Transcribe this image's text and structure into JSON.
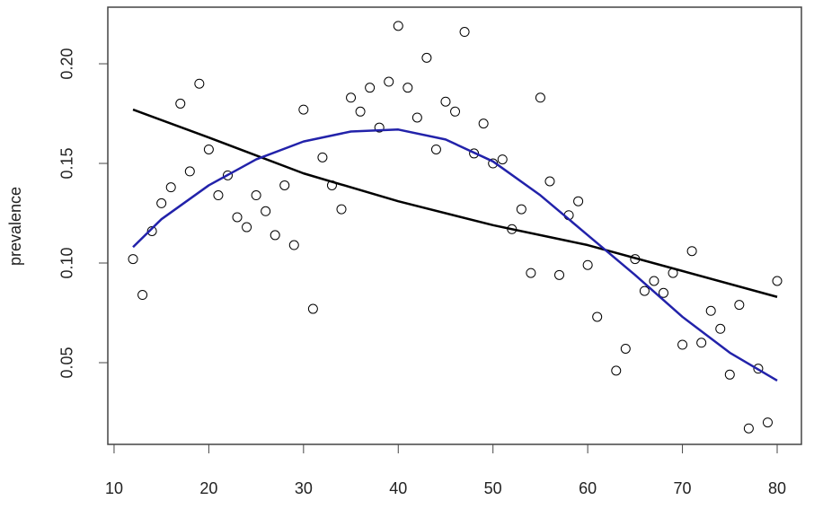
{
  "chart_data": {
    "type": "scatter",
    "y_label": "prevalence",
    "xlim": [
      9.34,
      82.56
    ],
    "ylim": [
      0.009,
      0.2284
    ],
    "xticks": [
      10,
      20,
      30,
      40,
      50,
      60,
      70,
      80
    ],
    "yticks": [
      0.05,
      {
        "value": 0.1,
        "label": "0.10"
      },
      0.15,
      {
        "value": 0.2,
        "label": "0.20"
      }
    ],
    "series": [
      {
        "type": "scatter",
        "color": "#000000",
        "x": [
          12,
          13,
          14,
          15,
          16,
          17,
          18,
          19,
          20,
          21,
          22,
          23,
          24,
          25,
          26,
          27,
          28,
          29,
          30,
          31,
          32,
          33,
          34,
          35,
          36,
          37,
          38,
          39,
          40,
          41,
          42,
          43,
          44,
          45,
          46,
          47,
          48,
          49,
          50,
          51,
          52,
          53,
          54,
          55,
          56,
          57,
          58,
          59,
          60,
          61,
          63,
          64,
          65,
          66,
          67,
          68,
          69,
          70,
          71,
          72,
          73,
          74,
          75,
          76,
          77,
          78,
          79,
          80
        ],
        "values": [
          0.102,
          0.084,
          0.116,
          0.13,
          0.138,
          0.18,
          0.146,
          0.19,
          0.157,
          0.134,
          0.144,
          0.123,
          0.118,
          0.134,
          0.126,
          0.114,
          0.139,
          0.109,
          0.177,
          0.077,
          0.153,
          0.139,
          0.127,
          0.183,
          0.176,
          0.188,
          0.168,
          0.191,
          0.219,
          0.188,
          0.173,
          0.203,
          0.157,
          0.181,
          0.176,
          0.216,
          0.155,
          0.17,
          0.15,
          0.152,
          0.117,
          0.127,
          0.095,
          0.183,
          0.141,
          0.094,
          0.124,
          0.131,
          0.099,
          0.073,
          0.046,
          0.057,
          0.102,
          0.086,
          0.091,
          0.085,
          0.095,
          0.059,
          0.106,
          0.06,
          0.076,
          0.067,
          0.044,
          0.079,
          0.017,
          0.047,
          0.02,
          0.091
        ]
      },
      {
        "type": "line",
        "color": "#000000",
        "x": [
          12,
          20,
          30,
          40,
          50,
          60,
          70,
          80
        ],
        "values": [
          0.177,
          0.163,
          0.145,
          0.131,
          0.119,
          0.109,
          0.096,
          0.083
        ]
      },
      {
        "type": "line",
        "color": "#2222aa",
        "x": [
          12,
          15,
          20,
          25,
          30,
          35,
          40,
          45,
          50,
          55,
          60,
          65,
          70,
          75,
          80
        ],
        "values": [
          0.108,
          0.122,
          0.139,
          0.152,
          0.161,
          0.166,
          0.167,
          0.162,
          0.151,
          0.134,
          0.114,
          0.094,
          0.073,
          0.055,
          0.041
        ]
      }
    ]
  }
}
